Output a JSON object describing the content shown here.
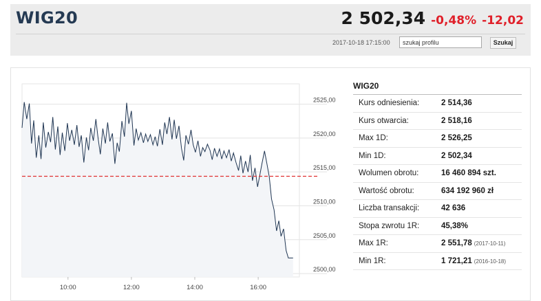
{
  "header": {
    "ticker": "WIG20",
    "price": "2 502,34",
    "change_pct": "-0,48%",
    "change_abs": "-12,02",
    "timestamp": "2017-10-18 17:15:00",
    "search_placeholder": "szukaj profilu",
    "search_button": "Szukaj",
    "colors": {
      "negative": "#e0202a",
      "header_bg": "#ececec",
      "ticker": "#253a53"
    }
  },
  "stats": {
    "title": "WIG20",
    "rows": [
      {
        "label": "Kurs odniesienia:",
        "value": "2 514,36",
        "date": ""
      },
      {
        "label": "Kurs otwarcia:",
        "value": "2 518,16",
        "date": ""
      },
      {
        "label": "Max 1D:",
        "value": "2 526,25",
        "date": ""
      },
      {
        "label": "Min 1D:",
        "value": "2 502,34",
        "date": ""
      },
      {
        "label": "Wolumen obrotu:",
        "value": "16 460 894 szt.",
        "date": ""
      },
      {
        "label": "Wartość obrotu:",
        "value": "634 192 960 zł",
        "date": ""
      },
      {
        "label": "Liczba transakcji:",
        "value": "42 636",
        "date": ""
      },
      {
        "label": "Stopa zwrotu 1R:",
        "value": "45,38%",
        "date": ""
      },
      {
        "label": "Max 1R:",
        "value": "2 551,78",
        "date": "(2017-10-11)"
      },
      {
        "label": "Min 1R:",
        "value": "1 721,21",
        "date": "(2016-10-18)"
      }
    ]
  },
  "chart_data": {
    "type": "line",
    "xlim": [
      8.55,
      17.3
    ],
    "ylim": [
      2499.5,
      2528
    ],
    "x_ticks": [
      10,
      12,
      14,
      16
    ],
    "x_tick_labels": [
      "10:00",
      "12:00",
      "14:00",
      "16:00"
    ],
    "y_ticks": [
      2500,
      2505,
      2510,
      2515,
      2520,
      2525
    ],
    "y_tick_labels": [
      "2500,00",
      "2505,00",
      "2510,00",
      "2515,00",
      "2520,00",
      "2525,00"
    ],
    "reference_line": 2514.36,
    "grid": true,
    "line_color": "#1f3552",
    "fill_color": "#f3f5f8",
    "reference_color": "#e03030",
    "series": [
      {
        "x": [
          8.55,
          8.62,
          8.7,
          8.78,
          8.85,
          8.92,
          9.0,
          9.08,
          9.15,
          9.22,
          9.3,
          9.38,
          9.45,
          9.52,
          9.6,
          9.68,
          9.75,
          9.82,
          9.9,
          9.98,
          10.05,
          10.12,
          10.2,
          10.28,
          10.35,
          10.42,
          10.5,
          10.58,
          10.65,
          10.72,
          10.8,
          10.88,
          10.95,
          11.02,
          11.1,
          11.18,
          11.25,
          11.32,
          11.4,
          11.48,
          11.55,
          11.62,
          11.7,
          11.78,
          11.85,
          11.92,
          12.0,
          12.08,
          12.15,
          12.22,
          12.3,
          12.38,
          12.45,
          12.52,
          12.6,
          12.68,
          12.75,
          12.82,
          12.9,
          12.98,
          13.05,
          13.12,
          13.2,
          13.28,
          13.35,
          13.42,
          13.5,
          13.58,
          13.65,
          13.72,
          13.8,
          13.88,
          13.95,
          14.02,
          14.1,
          14.18,
          14.25,
          14.32,
          14.4,
          14.48,
          14.55,
          14.62,
          14.7,
          14.78,
          14.85,
          14.92,
          15.0,
          15.08,
          15.15,
          15.22,
          15.3,
          15.38,
          15.45,
          15.52,
          15.6,
          15.68,
          15.75,
          15.82,
          15.9,
          15.98,
          16.05,
          16.12,
          16.2,
          16.28,
          16.35,
          16.42,
          16.5,
          16.58,
          16.65,
          16.72,
          16.8,
          16.88,
          16.95,
          17.02,
          17.1
        ],
        "y": [
          2521.5,
          2525.3,
          2522.8,
          2525.1,
          2519.2,
          2522.6,
          2517.1,
          2520.4,
          2516.9,
          2522.3,
          2518.6,
          2520.9,
          2519.4,
          2523.1,
          2518.3,
          2521.7,
          2517.5,
          2520.8,
          2518.1,
          2522.2,
          2519.6,
          2521.2,
          2519.0,
          2521.9,
          2518.7,
          2520.4,
          2516.4,
          2520.1,
          2518.2,
          2521.5,
          2519.6,
          2522.8,
          2520.0,
          2517.6,
          2521.4,
          2519.2,
          2522.3,
          2519.5,
          2520.7,
          2516.2,
          2519.3,
          2518.0,
          2522.5,
          2520.2,
          2525.2,
          2522.1,
          2524.0,
          2518.9,
          2521.4,
          2519.7,
          2520.8,
          2519.3,
          2520.6,
          2519.5,
          2520.5,
          2519.0,
          2520.2,
          2518.8,
          2521.3,
          2519.0,
          2522.3,
          2520.6,
          2523.1,
          2519.8,
          2522.7,
          2519.9,
          2521.8,
          2518.5,
          2516.7,
          2520.4,
          2519.1,
          2521.2,
          2519.0,
          2517.9,
          2519.6,
          2517.3,
          2518.6,
          2518.0,
          2519.1,
          2518.2,
          2516.8,
          2518.5,
          2517.3,
          2518.4,
          2516.9,
          2518.1,
          2517.1,
          2518.3,
          2516.6,
          2517.8,
          2516.4,
          2515.2,
          2517.4,
          2514.8,
          2516.6,
          2515.0,
          2517.5,
          2513.7,
          2515.6,
          2512.8,
          2514.5,
          2516.3,
          2518.1,
          2516.1,
          2514.3,
          2511.0,
          2509.4,
          2506.3,
          2507.8,
          2505.5,
          2506.6,
          2503.4,
          2502.3,
          2502.3,
          2502.3
        ]
      }
    ]
  }
}
